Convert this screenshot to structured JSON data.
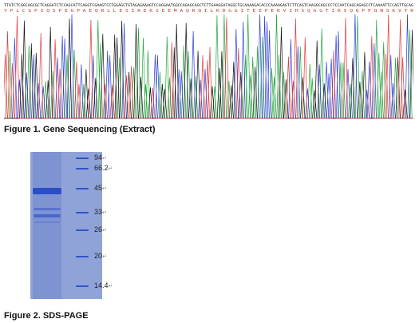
{
  "sequence": {
    "bases": "TTATCTCGGCAGCGCTCAGGATCTCCAGCATTCAGGTCGAAGTCCTGGAGCTGTAGAGAAAGTCCAGGAATGGCCAGAGCAGCTCTTGAAGGATAGGCTGCAAAAGACACCCAAAAGAGTCTTCAGTCAAGGCAGCCCTCCAATCAGCAGAGCCTCAAAATTCCAGTTGCAG",
    "amino_acids": "Y P L C G P S Q S P E G P A E Q R L L E S I R E K S E E M A Q R Q I L K D G G I T E E P E R V I H S Q G G T I R V Q Q P P Q N S K V T R",
    "colors": {
      "A": "#22a63a",
      "C": "#2b3fd6",
      "G": "#111111",
      "T": "#e23a3a"
    }
  },
  "figure1": {
    "caption": "Figure 1. Gene Sequencing (Extract)"
  },
  "figure2": {
    "caption": "Figure 2. SDS-PAGE",
    "markers": [
      "94",
      "66.2",
      "45",
      "33",
      "26",
      "20",
      "14.4"
    ],
    "return_symbol": "↵"
  }
}
